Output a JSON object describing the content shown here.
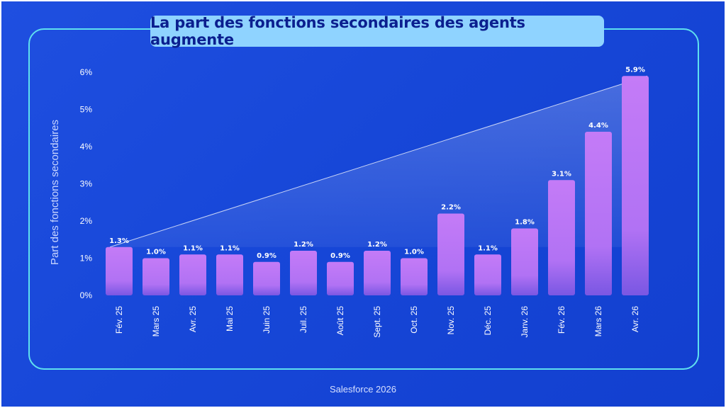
{
  "title": "La part des fonctions secondaires des agents augmente",
  "footer": "Salesforce 2026",
  "colors": {
    "background": "#1747d8",
    "frame": "#5fe0ef",
    "title_box": "#8fd3ff",
    "title_text": "#0b1f8f",
    "bar_top": "#c47bf7",
    "bar_bottom": "#7a57e3"
  },
  "chart_data": {
    "type": "bar",
    "title": "La part des fonctions secondaires des agents augmente",
    "xlabel": "",
    "ylabel": "Part des fonctions secondaires",
    "ylim": [
      0,
      6
    ],
    "yticks": [
      "0%",
      "1%",
      "2%",
      "3%",
      "4%",
      "5%",
      "6%"
    ],
    "categories": [
      "Fév. 25",
      "Mars 25",
      "Avr. 25",
      "Mai 25",
      "Juin 25",
      "Juil. 25",
      "Août 25",
      "Sept. 25",
      "Oct. 25",
      "Nov. 25",
      "Déc. 25",
      "Janv. 26",
      "Fév. 26",
      "Mars 26",
      "Avr. 26"
    ],
    "values": [
      1.3,
      1.0,
      1.1,
      1.1,
      0.9,
      1.2,
      0.9,
      1.2,
      1.0,
      2.2,
      1.1,
      1.8,
      3.1,
      4.4,
      5.9
    ],
    "labels": [
      "1.3%",
      "1.0%",
      "1.1%",
      "1.1%",
      "0.9%",
      "1.2%",
      "0.9%",
      "1.2%",
      "1.0%",
      "2.2%",
      "1.1%",
      "1.8%",
      "3.1%",
      "4.4%",
      "5.9%"
    ],
    "grid": false,
    "legend": "none",
    "annotation": "trend triangle from first to last bar"
  }
}
